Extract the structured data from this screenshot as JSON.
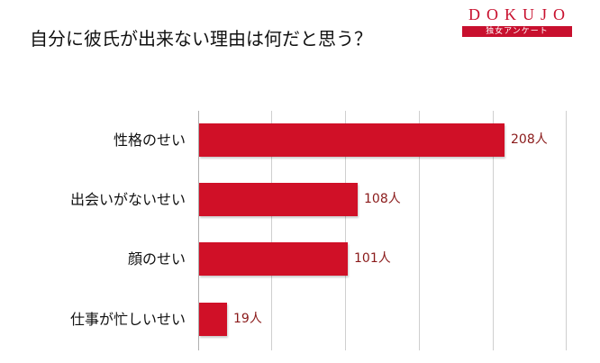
{
  "logo": {
    "text": "DOKUJO",
    "subtitle": "独女アンケート",
    "color": "#c8102e"
  },
  "title": "自分に彼氏が出来ない理由は何だと思う？",
  "bar_color": "#d01027",
  "unit": "人",
  "categories": [
    "性格のせい",
    "出会いがないせい",
    "顔のせい",
    "仕事が忙しいせい"
  ],
  "labels": [
    "208人",
    "108人",
    "101人",
    "19人"
  ],
  "chart_data": {
    "type": "bar",
    "orientation": "horizontal",
    "title": "自分に彼氏が出来ない理由は何だと思う？",
    "categories": [
      "性格のせい",
      "出会いがないせい",
      "顔のせい",
      "仕事が忙しいせい"
    ],
    "values": [
      208,
      108,
      101,
      19
    ],
    "data_labels": [
      "208人",
      "108人",
      "101人",
      "19人"
    ],
    "xlabel": "",
    "ylabel": "",
    "xlim": [
      0,
      250
    ],
    "grid": true,
    "gridline_step": 50,
    "legend": null
  }
}
